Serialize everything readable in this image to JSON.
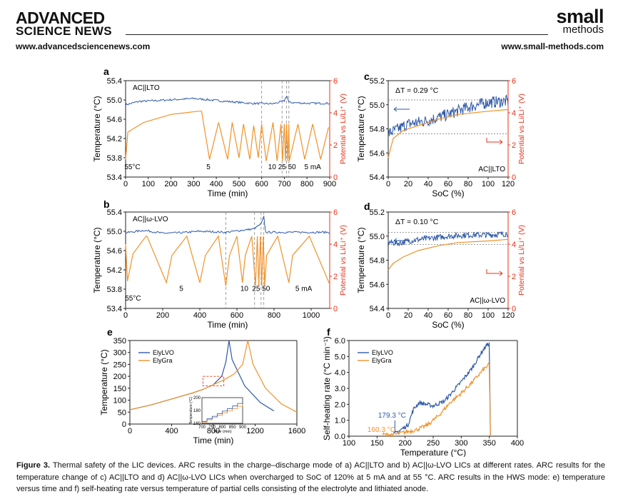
{
  "header": {
    "journal_left_line1": "ADVANCED",
    "journal_left_line2": "SCIENCE NEWS",
    "journal_right_line1": "small",
    "journal_right_line2": "methods",
    "url_left": "www.advancedsciencenews.com",
    "url_right": "www.small-methods.com"
  },
  "caption": {
    "label": "Figure 3.",
    "text": "Thermal safety of the LIC devices. ARC results in the charge–discharge mode of a) AC||LTO and b) AC||ω-LVO LICs at different rates. ARC results for the temperature change of c) AC||LTO and d) AC||ω-LVO LICs when overcharged to SoC of 120% at 5 mA and at 55 °C. ARC results in the HWS mode: e) temperature versus time and f) self-heating rate versus temperature of partial cells consisting of the electrolyte and lithiated anode."
  },
  "colors": {
    "temp": "#2f5aa8",
    "potential": "#f0922a",
    "axis_right": "#e8311a",
    "refline": "#888888"
  },
  "chart_data": [
    {
      "panel": "a",
      "type": "line",
      "title": "AC||LTO",
      "xlabel": "Time (min)",
      "ylabel": "Temperature (°C)",
      "y2label": "Potential vs Li/Li⁺ (V)",
      "xlim": [
        0,
        900
      ],
      "xticks": [
        0,
        100,
        200,
        300,
        400,
        500,
        600,
        700,
        800,
        900
      ],
      "ylim": [
        53.4,
        55.4
      ],
      "yticks": [
        53.4,
        53.8,
        54.2,
        54.6,
        55.0,
        55.4
      ],
      "y2lim": [
        0,
        6
      ],
      "y2ticks": [
        0,
        2,
        4,
        6
      ],
      "annotations": [
        {
          "text": "55°C",
          "x": 30,
          "y2": 0.4
        },
        {
          "text": "5",
          "x": 365,
          "y2": 0.4
        },
        {
          "text": "10 25 50",
          "x": 690,
          "y2": 0.4
        },
        {
          "text": "5 mA",
          "x": 825,
          "y2": 0.4
        }
      ],
      "vlines": [
        600,
        690,
        710,
        720
      ],
      "series": [
        {
          "name": "Temperature",
          "axis": "left",
          "base": 54.95,
          "points": [
            [
              0,
              54.9
            ],
            [
              60,
              54.97
            ],
            [
              150,
              54.99
            ],
            [
              300,
              55.03
            ],
            [
              420,
              54.98
            ],
            [
              550,
              54.93
            ],
            [
              650,
              54.92
            ],
            [
              700,
              54.98
            ],
            [
              710,
              55.1
            ],
            [
              720,
              54.95
            ],
            [
              800,
              54.93
            ],
            [
              900,
              54.93
            ]
          ]
        },
        {
          "name": "Potential",
          "axis": "right",
          "cycles_first": 340,
          "segments": [
            [
              0,
              1.1
            ],
            [
              10,
              2.8
            ],
            [
              80,
              3.4
            ],
            [
              200,
              3.9
            ],
            [
              320,
              4.1
            ],
            [
              335,
              4.1
            ],
            [
              370,
              1.1
            ],
            [
              410,
              3.4
            ],
            [
              450,
              1.1
            ],
            [
              470,
              3.4
            ],
            [
              500,
              1.2
            ],
            [
              520,
              3.3
            ],
            [
              548,
              1.1
            ],
            [
              565,
              3.2
            ],
            [
              585,
              1.2
            ],
            [
              600,
              3.3
            ],
            [
              620,
              1.0
            ],
            [
              650,
              3.4
            ],
            [
              668,
              1.0
            ],
            [
              685,
              3.3
            ],
            [
              692,
              1.0
            ],
            [
              700,
              3.3
            ],
            [
              705,
              1.0
            ],
            [
              710,
              3.3
            ],
            [
              715,
              1.0
            ],
            [
              720,
              3.3
            ],
            [
              722,
              1.0
            ],
            [
              760,
              3.3
            ],
            [
              790,
              1.1
            ],
            [
              825,
              3.3
            ],
            [
              860,
              1.1
            ],
            [
              895,
              3.1
            ]
          ]
        }
      ]
    },
    {
      "panel": "b",
      "type": "line",
      "title": "AC||ω-LVO",
      "xlabel": "Time (min)",
      "ylabel": "Temperature (°C)",
      "y2label": "Potential vs Li/Li⁺ (V)",
      "xlim": [
        0,
        1100
      ],
      "xticks": [
        0,
        200,
        400,
        600,
        800,
        1000
      ],
      "ylim": [
        53.4,
        55.4
      ],
      "yticks": [
        53.4,
        53.8,
        54.2,
        54.6,
        55.0,
        55.4
      ],
      "y2lim": [
        0,
        6
      ],
      "y2ticks": [
        0,
        2,
        4,
        6
      ],
      "annotations": [
        {
          "text": "55°C",
          "x": 40,
          "y2": 0.4
        },
        {
          "text": "5",
          "x": 300,
          "y2": 1.0
        },
        {
          "text": "10",
          "x": 640,
          "y2": 1.0
        },
        {
          "text": "25 50",
          "x": 730,
          "y2": 1.0
        },
        {
          "text": "5 mA",
          "x": 960,
          "y2": 1.0
        }
      ],
      "vlines": [
        540,
        695,
        730,
        745
      ],
      "series": [
        {
          "name": "Temperature",
          "axis": "left",
          "base": 54.98,
          "points": [
            [
              0,
              54.97
            ],
            [
              100,
              55.02
            ],
            [
              200,
              54.96
            ],
            [
              300,
              54.97
            ],
            [
              400,
              55.0
            ],
            [
              540,
              54.98
            ],
            [
              690,
              55.05
            ],
            [
              730,
              55.15
            ],
            [
              745,
              55.3
            ],
            [
              755,
              54.98
            ],
            [
              900,
              54.98
            ],
            [
              1100,
              54.98
            ]
          ]
        },
        {
          "name": "Potential",
          "axis": "right",
          "segments": [
            [
              0,
              4.0
            ],
            [
              10,
              1.7
            ],
            [
              40,
              3.4
            ],
            [
              110,
              4.5
            ],
            [
              115,
              4.5
            ],
            [
              220,
              1.6
            ],
            [
              250,
              3.3
            ],
            [
              330,
              4.5
            ],
            [
              400,
              1.6
            ],
            [
              430,
              3.3
            ],
            [
              500,
              4.5
            ],
            [
              540,
              1.4
            ],
            [
              560,
              3.3
            ],
            [
              600,
              4.5
            ],
            [
              630,
              1.6
            ],
            [
              645,
              3.3
            ],
            [
              680,
              4.5
            ],
            [
              700,
              1.4
            ],
            [
              710,
              4.5
            ],
            [
              718,
              1.4
            ],
            [
              726,
              4.5
            ],
            [
              734,
              1.4
            ],
            [
              742,
              4.5
            ],
            [
              750,
              1.4
            ],
            [
              760,
              3.3
            ],
            [
              820,
              4.5
            ],
            [
              880,
              1.6
            ],
            [
              900,
              3.3
            ],
            [
              990,
              4.5
            ],
            [
              1100,
              1.5
            ]
          ]
        }
      ]
    },
    {
      "panel": "c",
      "type": "line",
      "title": "AC||LTO",
      "delta_label": "ΔT = 0.29 °C",
      "xlabel": "SoC (%)",
      "ylabel": "Temperature (°C)",
      "y2label": "Potential vs Li/Li⁺ (V)",
      "xlim": [
        0,
        120
      ],
      "xticks": [
        0,
        20,
        40,
        60,
        80,
        100,
        120
      ],
      "ylim": [
        54.4,
        55.2
      ],
      "yticks": [
        54.4,
        54.6,
        54.8,
        55.0,
        55.2
      ],
      "y2lim": [
        0,
        6
      ],
      "y2ticks": [
        0,
        2,
        4,
        6
      ],
      "reflines": [
        55.04,
        54.76
      ],
      "series": [
        {
          "name": "Temperature",
          "axis": "left",
          "points": [
            [
              0,
              54.76
            ],
            [
              10,
              54.8
            ],
            [
              20,
              54.84
            ],
            [
              40,
              54.87
            ],
            [
              60,
              54.92
            ],
            [
              80,
              54.98
            ],
            [
              100,
              55.02
            ],
            [
              120,
              55.03
            ]
          ]
        },
        {
          "name": "Potential",
          "axis": "right",
          "points": [
            [
              0,
              1.2
            ],
            [
              5,
              2.4
            ],
            [
              15,
              2.9
            ],
            [
              30,
              3.2
            ],
            [
              50,
              3.6
            ],
            [
              70,
              3.9
            ],
            [
              100,
              4.1
            ],
            [
              120,
              4.2
            ]
          ]
        }
      ]
    },
    {
      "panel": "d",
      "type": "line",
      "title": "AC||ω-LVO",
      "delta_label": "ΔT = 0.10 °C",
      "xlabel": "SoC (%)",
      "ylabel": "Temperature (°C)",
      "y2label": "Potential vs Li/Li⁺ (V)",
      "xlim": [
        0,
        120
      ],
      "xticks": [
        0,
        20,
        40,
        60,
        80,
        100,
        120
      ],
      "ylim": [
        54.4,
        55.2
      ],
      "yticks": [
        54.4,
        54.6,
        54.8,
        55.0,
        55.2
      ],
      "y2lim": [
        0,
        6
      ],
      "y2ticks": [
        0,
        2,
        4,
        6
      ],
      "reflines": [
        55.03,
        54.93
      ],
      "series": [
        {
          "name": "Temperature",
          "axis": "left",
          "points": [
            [
              0,
              54.95
            ],
            [
              10,
              54.94
            ],
            [
              20,
              54.96
            ],
            [
              40,
              54.98
            ],
            [
              60,
              55.0
            ],
            [
              80,
              55.01
            ],
            [
              100,
              55.01
            ],
            [
              120,
              55.02
            ]
          ]
        },
        {
          "name": "Potential",
          "axis": "right",
          "points": [
            [
              0,
              2.4
            ],
            [
              5,
              2.8
            ],
            [
              15,
              3.2
            ],
            [
              30,
              3.6
            ],
            [
              50,
              3.9
            ],
            [
              70,
              4.1
            ],
            [
              100,
              4.2
            ],
            [
              120,
              4.3
            ]
          ]
        }
      ]
    },
    {
      "panel": "e",
      "type": "line",
      "xlabel": "Time (min)",
      "ylabel": "Temperature (°C)",
      "xlim": [
        0,
        1600
      ],
      "xticks": [
        0,
        400,
        800,
        1200,
        1600
      ],
      "ylim": [
        0,
        350
      ],
      "yticks": [
        0,
        50,
        100,
        150,
        200,
        250,
        300,
        350
      ],
      "legend": [
        "ElyLVO",
        "ElyGra"
      ],
      "inset": {
        "xlim": [
          700,
          900
        ],
        "xticks": [
          700,
          750,
          800,
          850,
          900
        ],
        "ylim": [
          160,
          200
        ],
        "yticks": [
          160,
          180,
          200
        ],
        "ylabel": "Temperature (°C)",
        "xlabel": "Time (min)"
      },
      "series": [
        {
          "name": "ElyLVO",
          "points": [
            [
              0,
              60
            ],
            [
              200,
              80
            ],
            [
              400,
              105
            ],
            [
              600,
              130
            ],
            [
              700,
              145
            ],
            [
              800,
              165
            ],
            [
              880,
              200
            ],
            [
              920,
              260
            ],
            [
              950,
              350
            ],
            [
              980,
              270
            ],
            [
              1100,
              160
            ],
            [
              1250,
              90
            ],
            [
              1380,
              55
            ]
          ]
        },
        {
          "name": "ElyGra",
          "points": [
            [
              0,
              60
            ],
            [
              200,
              80
            ],
            [
              400,
              105
            ],
            [
              600,
              130
            ],
            [
              700,
              145
            ],
            [
              800,
              165
            ],
            [
              900,
              185
            ],
            [
              1000,
              210
            ],
            [
              1080,
              250
            ],
            [
              1130,
              350
            ],
            [
              1180,
              250
            ],
            [
              1300,
              150
            ],
            [
              1450,
              85
            ],
            [
              1600,
              50
            ]
          ]
        }
      ]
    },
    {
      "panel": "f",
      "type": "line",
      "xlabel": "Temperature (°C)",
      "ylabel": "Self-heating rate (°C min⁻¹)",
      "xlim": [
        100,
        400
      ],
      "xticks": [
        100,
        150,
        200,
        250,
        300,
        350,
        400
      ],
      "ylim": [
        0,
        6
      ],
      "yticks": [
        0,
        1,
        2,
        3,
        4,
        5,
        6
      ],
      "legend": [
        "ElyLVO",
        "ElyGra"
      ],
      "annotations": [
        {
          "text": "179.3 °C",
          "series": "ElyLVO"
        },
        {
          "text": "160.3 °C",
          "series": "ElyGra"
        }
      ],
      "series": [
        {
          "name": "ElyLVO",
          "points": [
            [
              179.3,
              0.1
            ],
            [
              190,
              0.35
            ],
            [
              205,
              0.7
            ],
            [
              215,
              1.7
            ],
            [
              225,
              2.1
            ],
            [
              250,
              1.9
            ],
            [
              270,
              2.2
            ],
            [
              295,
              3.2
            ],
            [
              320,
              4.3
            ],
            [
              335,
              5.2
            ],
            [
              345,
              5.7
            ],
            [
              350,
              5.8
            ],
            [
              352,
              0.0
            ]
          ]
        },
        {
          "name": "ElyGra",
          "points": [
            [
              160.3,
              0.1
            ],
            [
              180,
              0.1
            ],
            [
              200,
              0.25
            ],
            [
              220,
              0.4
            ],
            [
              240,
              0.7
            ],
            [
              260,
              1.3
            ],
            [
              280,
              2.1
            ],
            [
              300,
              2.7
            ],
            [
              320,
              3.4
            ],
            [
              340,
              4.2
            ],
            [
              350,
              4.5
            ],
            [
              352,
              0.0
            ]
          ]
        }
      ]
    }
  ]
}
